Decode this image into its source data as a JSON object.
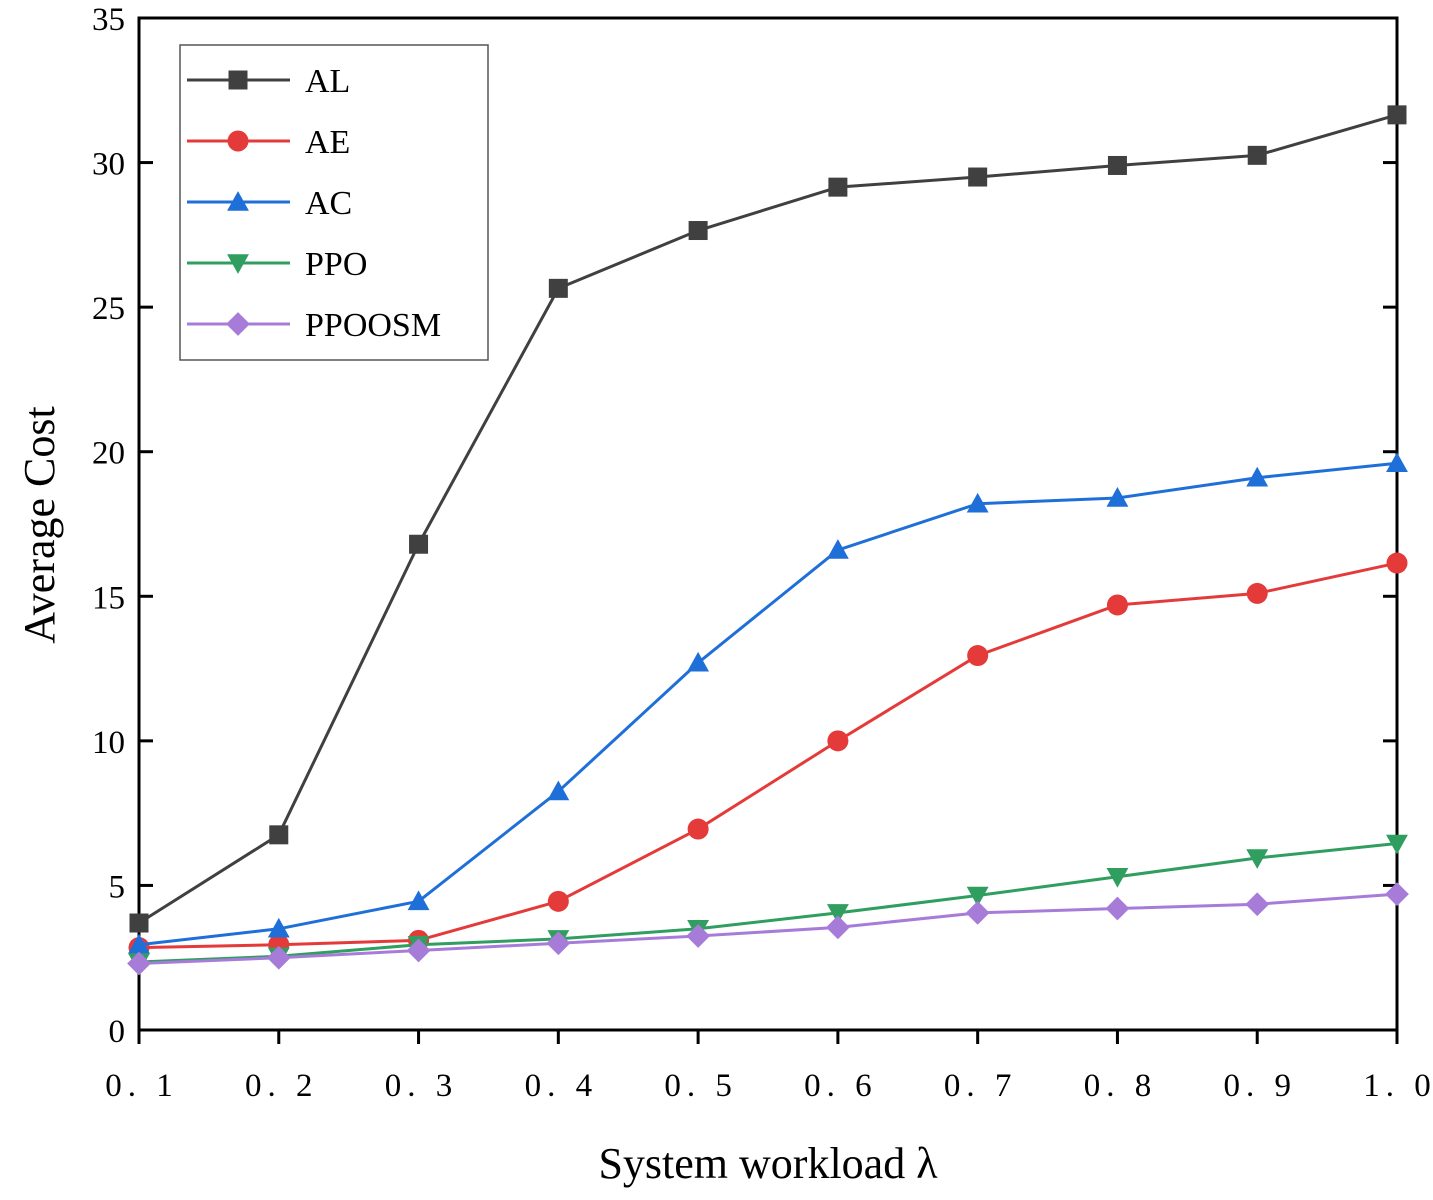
{
  "chart_data": {
    "type": "line",
    "title": "",
    "xlabel": "System workload λ",
    "ylabel": "Average Cost",
    "x": [
      0.1,
      0.2,
      0.3,
      0.4,
      0.5,
      0.6,
      0.7,
      0.8,
      0.9,
      1.0
    ],
    "x_tick_labels": [
      "0. 1",
      "0. 2",
      "0. 3",
      "0. 4",
      "0. 5",
      "0. 6",
      "0. 7",
      "0. 8",
      "0. 9",
      "1. 0"
    ],
    "xlim": [
      0.1,
      1.0
    ],
    "ylim": [
      0,
      35
    ],
    "y_ticks": [
      0,
      5,
      10,
      15,
      20,
      25,
      30,
      35
    ],
    "y_tick_labels": [
      "0",
      "5",
      "10",
      "15",
      "20",
      "25",
      "30",
      "35"
    ],
    "grid": false,
    "legend_position": "top-left",
    "series": [
      {
        "name": "AL",
        "color": "#404040",
        "marker": "square",
        "values": [
          3.7,
          6.75,
          16.8,
          25.65,
          27.65,
          29.15,
          29.5,
          29.9,
          30.25,
          31.65
        ]
      },
      {
        "name": "AE",
        "color": "#e53a3a",
        "marker": "circle",
        "values": [
          2.85,
          2.95,
          3.1,
          4.45,
          6.95,
          10.0,
          12.95,
          14.7,
          15.1,
          16.15
        ]
      },
      {
        "name": "AC",
        "color": "#1f6fd9",
        "marker": "triangle-up",
        "values": [
          2.95,
          3.5,
          4.45,
          8.25,
          12.7,
          16.6,
          18.2,
          18.4,
          19.1,
          19.6
        ]
      },
      {
        "name": "PPO",
        "color": "#2f9e5f",
        "marker": "triangle-down",
        "values": [
          2.35,
          2.55,
          2.95,
          3.15,
          3.5,
          4.05,
          4.65,
          5.3,
          5.95,
          6.45
        ]
      },
      {
        "name": "PPOOSM",
        "color": "#a77cd9",
        "marker": "diamond",
        "values": [
          2.3,
          2.5,
          2.75,
          3.0,
          3.25,
          3.55,
          4.05,
          4.2,
          4.35,
          4.7
        ]
      }
    ]
  }
}
